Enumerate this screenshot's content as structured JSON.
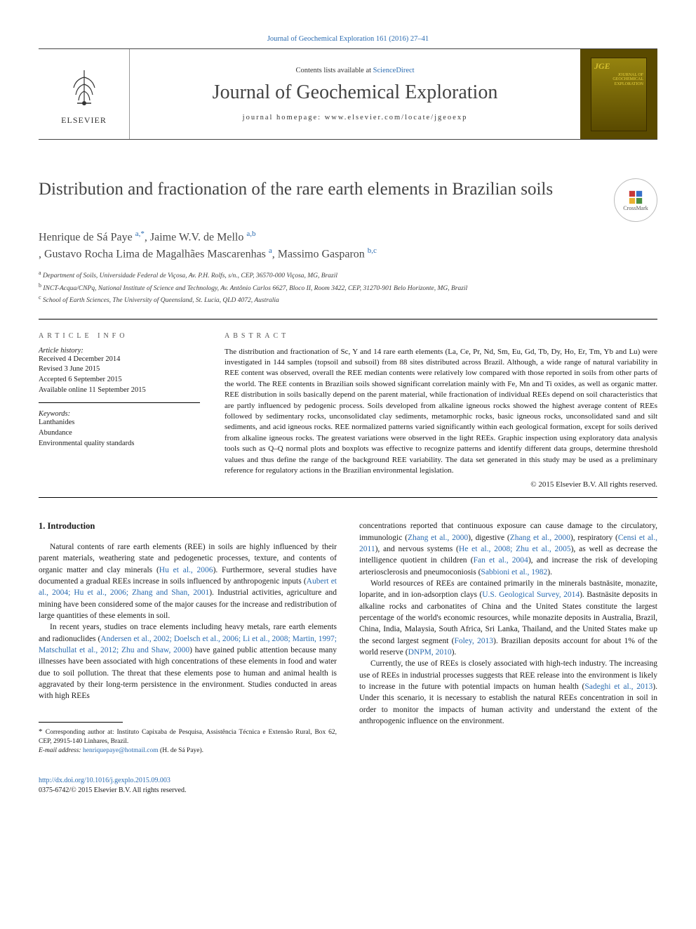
{
  "top_link": "Journal of Geochemical Exploration 161 (2016) 27–41",
  "header": {
    "elsevier": "ELSEVIER",
    "contents_prefix": "Contents lists available at ",
    "contents_link": "ScienceDirect",
    "journal_name": "Journal of Geochemical Exploration",
    "homepage_label": "journal homepage: ",
    "homepage_url": "www.elsevier.com/locate/jgeoexp",
    "cover_abbrev": "JGE",
    "cover_lines": "JOURNAL OF\nGEOCHEMICAL\nEXPLORATION"
  },
  "crossmark_label": "CrossMark",
  "title": "Distribution and fractionation of the rare earth elements in Brazilian soils",
  "authors_html": [
    {
      "name": "Henrique de Sá Paye ",
      "sup": "a,",
      "star": "*"
    },
    {
      "name": ", Jaime W.V. de Mello ",
      "sup": "a,b",
      "star": ""
    },
    {
      "name": ", Gustavo Rocha Lima de Magalhães Mascarenhas ",
      "sup": "a",
      "star": ""
    },
    {
      "name": ", Massimo Gasparon ",
      "sup": "b,c",
      "star": ""
    }
  ],
  "affiliations": [
    {
      "sup": "a",
      "text": " Department of Soils, Universidade Federal de Viçosa, Av. P.H. Rolfs, s/n., CEP, 36570-000 Viçosa, MG, Brazil"
    },
    {
      "sup": "b",
      "text": " INCT-Acqua/CNPq, National Institute of Science and Technology, Av. Antônio Carlos 6627, Bloco II, Room 3422, CEP, 31270-901 Belo Horizonte, MG, Brazil"
    },
    {
      "sup": "c",
      "text": " School of Earth Sciences, The University of Queensland, St. Lucia, QLD 4072, Australia"
    }
  ],
  "article_info": {
    "head": "ARTICLE INFO",
    "history_label": "Article history:",
    "history": [
      "Received 4 December 2014",
      "Revised 3 June 2015",
      "Accepted 6 September 2015",
      "Available online 11 September 2015"
    ],
    "keywords_label": "Keywords:",
    "keywords": [
      "Lanthanides",
      "Abundance",
      "Environmental quality standards"
    ]
  },
  "abstract": {
    "head": "ABSTRACT",
    "text": "The distribution and fractionation of Sc, Y and 14 rare earth elements (La, Ce, Pr, Nd, Sm, Eu, Gd, Tb, Dy, Ho, Er, Tm, Yb and Lu) were investigated in 144 samples (topsoil and subsoil) from 88 sites distributed across Brazil. Although, a wide range of natural variability in REE content was observed, overall the REE median contents were relatively low compared with those reported in soils from other parts of the world. The REE contents in Brazilian soils showed significant correlation mainly with Fe, Mn and Ti oxides, as well as organic matter. REE distribution in soils basically depend on the parent material, while fractionation of individual REEs depend on soil characteristics that are partly influenced by pedogenic process. Soils developed from alkaline igneous rocks showed the highest average content of REEs followed by sedimentary rocks, unconsolidated clay sediments, metamorphic rocks, basic igneous rocks, unconsolidated sand and silt sediments, and acid igneous rocks. REE normalized patterns varied significantly within each geological formation, except for soils derived from alkaline igneous rocks. The greatest variations were observed in the light REEs. Graphic inspection using exploratory data analysis tools such as Q–Q normal plots and boxplots was effective to recognize patterns and identify different data groups, determine threshold values and thus define the range of the background REE variability. The data set generated in this study may be used as a preliminary reference for regulatory actions in the Brazilian environmental legislation.",
    "copyright": "© 2015 Elsevier B.V. All rights reserved."
  },
  "body": {
    "section_heading": "1. Introduction",
    "col1": {
      "p1_a": "Natural contents of rare earth elements (REE) in soils are highly influenced by their parent materials, weathering state and pedogenetic processes, texture, and contents of organic matter and clay minerals (",
      "p1_link1": "Hu et al., 2006",
      "p1_b": "). Furthermore, several studies have documented a gradual REEs increase in soils influenced by anthropogenic inputs (",
      "p1_link2": "Aubert et al., 2004; Hu et al., 2006; Zhang and Shan, 2001",
      "p1_c": "). Industrial activities, agriculture and mining have been considered some of the major causes for the increase and redistribution of large quantities of these elements in soil.",
      "p2_a": "In recent years, studies on trace elements including heavy metals, rare earth elements and radionuclides (",
      "p2_link1": "Andersen et al., 2002; Doelsch et al., 2006; Li et al., 2008; Martin, 1997; Matschullat et al., 2012; Zhu and Shaw, 2000",
      "p2_b": ") have gained public attention because many illnesses have been associated with high concentrations of these elements in food and water due to soil pollution. The threat that these elements pose to human and animal health is aggravated by their long-term persistence in the environment. Studies conducted in areas with high REEs"
    },
    "col2": {
      "p1_a": "concentrations reported that continuous exposure can cause damage to the circulatory, immunologic (",
      "p1_link1": "Zhang et al., 2000",
      "p1_b": "), digestive (",
      "p1_link2": "Zhang et al., 2000",
      "p1_c": "), respiratory (",
      "p1_link3": "Censi et al., 2011",
      "p1_d": "), and nervous systems (",
      "p1_link4": "He et al., 2008; Zhu et al., 2005",
      "p1_e": "), as well as decrease the intelligence quotient in children (",
      "p1_link5": "Fan et al., 2004",
      "p1_f": "), and increase the risk of developing arteriosclerosis and pneumoconiosis (",
      "p1_link6": "Sabbioni et al., 1982",
      "p1_g": ").",
      "p2_a": "World resources of REEs are contained primarily in the minerals bastnäsite, monazite, loparite, and in ion-adsorption clays (",
      "p2_link1": "U.S. Geological Survey, 2014",
      "p2_b": "). Bastnäsite deposits in alkaline rocks and carbonatites of China and the United States constitute the largest percentage of the world's economic resources, while monazite deposits in Australia, Brazil, China, India, Malaysia, South Africa, Sri Lanka, Thailand, and the United States make up the second largest segment (",
      "p2_link2": "Foley, 2013",
      "p2_c": "). Brazilian deposits account for about 1% of the world reserve (",
      "p2_link3": "DNPM, 2010",
      "p2_d": ").",
      "p3_a": "Currently, the use of REEs is closely associated with high-tech industry. The increasing use of REEs in industrial processes suggests that REE release into the environment is likely to increase in the future with potential impacts on human health (",
      "p3_link1": "Sadeghi et al., 2013",
      "p3_b": "). Under this scenario, it is necessary to establish the natural REEs concentration in soil in order to monitor the impacts of human activity and understand the extent of the anthropogenic influence on the environment."
    }
  },
  "footnote": {
    "corr": "Corresponding author at: Instituto Capixaba de Pesquisa, Assistência Técnica e Extensão Rural, Box 62, CEP, 29915-140 Linhares, Brazil.",
    "email_label": "E-mail address: ",
    "email": "henriquepaye@hotmail.com",
    "email_suffix": " (H. de Sá Paye)."
  },
  "footer": {
    "doi": "http://dx.doi.org/10.1016/j.gexplo.2015.09.003",
    "issn_line": "0375-6742/© 2015 Elsevier B.V. All rights reserved."
  },
  "colors": {
    "link": "#2a6bb0",
    "text": "#1a1a1a",
    "muted": "#444444",
    "cover_bg": "#5a4a00",
    "cover_accent": "#d6c030"
  }
}
